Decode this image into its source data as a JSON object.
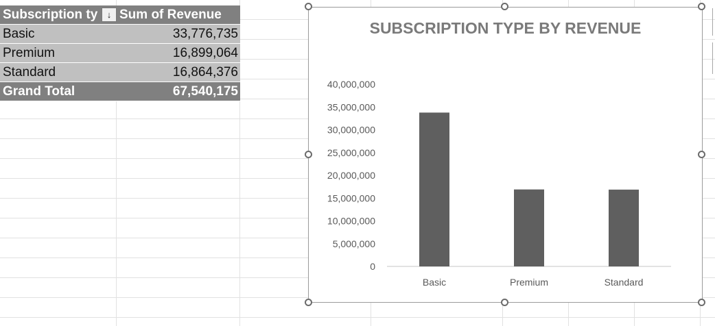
{
  "pivot": {
    "header": {
      "row_label": "Subscription ty",
      "value_label": "Sum of Revenue",
      "filter_glyph": "↓"
    },
    "rows": [
      {
        "label": "Basic",
        "value": "33,776,735"
      },
      {
        "label": "Premium",
        "value": "16,899,064"
      },
      {
        "label": "Standard",
        "value": "16,864,376"
      }
    ],
    "total": {
      "label": "Grand Total",
      "value": "67,540,175"
    }
  },
  "chart_data": {
    "type": "bar",
    "title": "SUBSCRIPTION TYPE BY REVENUE",
    "categories": [
      "Basic",
      "Premium",
      "Standard"
    ],
    "values": [
      33776735,
      16899064,
      16864376
    ],
    "ylim": [
      0,
      40000000
    ],
    "yticks": [
      "0",
      "5,000,000",
      "10,000,000",
      "15,000,000",
      "20,000,000",
      "25,000,000",
      "30,000,000",
      "35,000,000",
      "40,000,000"
    ],
    "grid": false,
    "legend": "none",
    "bar_color": "#5f5f5f"
  },
  "colors": {
    "pivot_header": "#808080",
    "pivot_row": "#c0c0c0",
    "title": "#7a7a7a"
  }
}
